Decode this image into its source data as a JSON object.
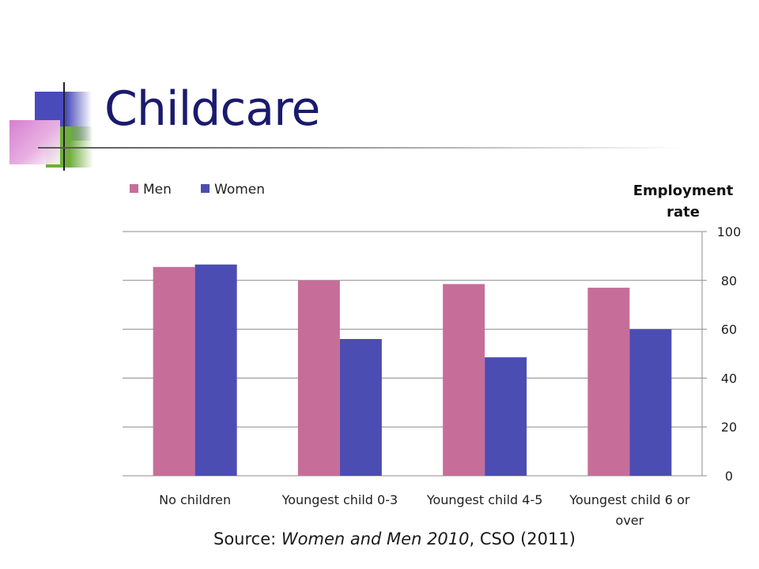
{
  "slide": {
    "title": "Childcare",
    "source_prefix": "Source: ",
    "source_italic": "Women and Men 2010",
    "source_suffix": ", CSO (2011)"
  },
  "chart_data": {
    "type": "bar",
    "categories": [
      "No children",
      "Youngest child 0-3",
      "Youngest child 4-5",
      "Youngest child 6 or over"
    ],
    "series": [
      {
        "name": "Men",
        "color": "#c66e99",
        "values": [
          85.5,
          80,
          78.5,
          77
        ]
      },
      {
        "name": "Women",
        "color": "#4b4db3",
        "values": [
          86.5,
          56,
          48.5,
          60
        ]
      }
    ],
    "ylabel": "Employment rate",
    "ylabel_lines": [
      "Employment",
      "rate"
    ],
    "ylim": [
      0,
      100
    ],
    "yticks": [
      0,
      20,
      40,
      60,
      80,
      100
    ],
    "y_axis_side": "right",
    "gridlines": true,
    "legend_position": "top-left"
  }
}
